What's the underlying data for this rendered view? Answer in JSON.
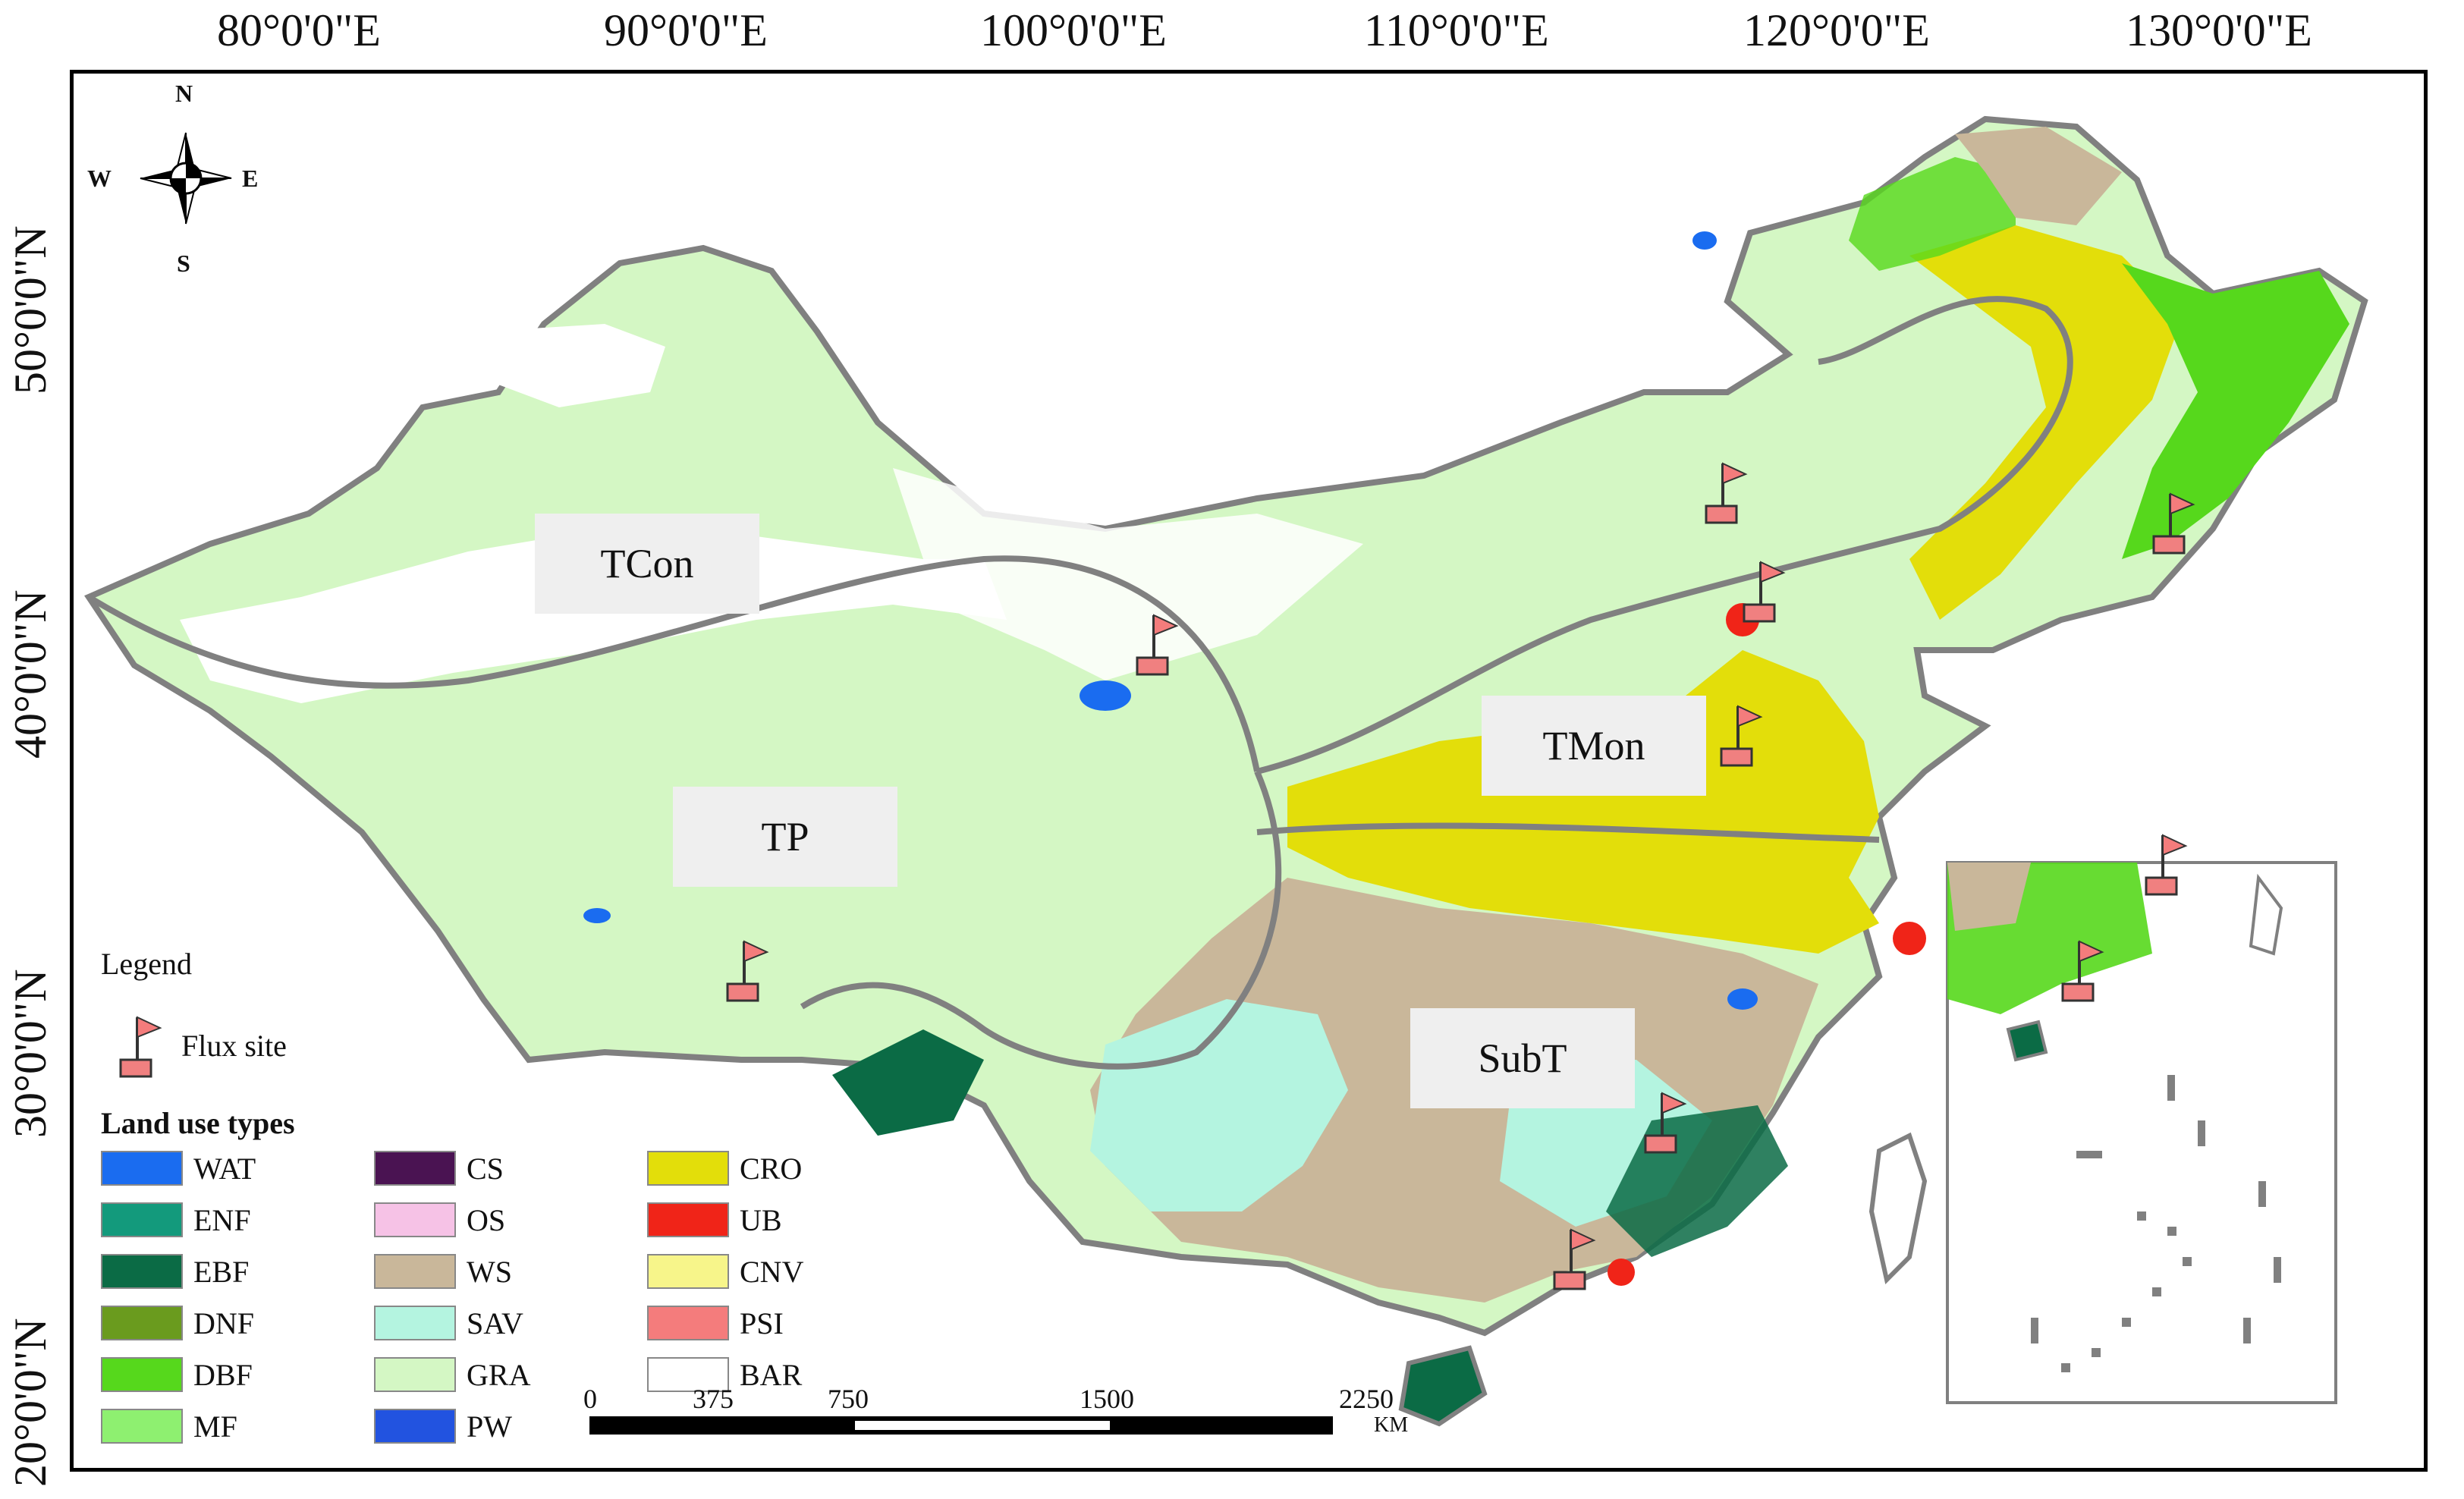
{
  "axes": {
    "longitude_labels": [
      "80°0'0\"E",
      "90°0'0\"E",
      "100°0'0\"E",
      "110°0'0\"E",
      "120°0'0\"E",
      "130°0'0\"E"
    ],
    "latitude_labels": [
      "50°0'0\"N",
      "40°0'0\"N",
      "30°0'0\"N",
      "20°0'0\"N"
    ]
  },
  "compass": {
    "north": "N",
    "south": "S",
    "east": "E",
    "west": "W"
  },
  "regions": [
    {
      "name": "TCon"
    },
    {
      "name": "TP"
    },
    {
      "name": "TMon"
    },
    {
      "name": "SubT"
    }
  ],
  "legend": {
    "title": "Legend",
    "flux_site_label": "Flux site",
    "land_use_title": "Land use types",
    "land_use_types": [
      {
        "code": "WAT",
        "color": "#1a6cf0"
      },
      {
        "code": "ENF",
        "color": "#139a7c"
      },
      {
        "code": "EBF",
        "color": "#0b6b45"
      },
      {
        "code": "DNF",
        "color": "#6a9b1e"
      },
      {
        "code": "DBF",
        "color": "#56d81c"
      },
      {
        "code": "MF",
        "color": "#8ef070"
      },
      {
        "code": "CS",
        "color": "#4a1352"
      },
      {
        "code": "OS",
        "color": "#f6c2e6"
      },
      {
        "code": "WS",
        "color": "#c9b79a"
      },
      {
        "code": "SAV",
        "color": "#b4f4e0"
      },
      {
        "code": "GRA",
        "color": "#d4f7c4"
      },
      {
        "code": "PW",
        "color": "#2253e0"
      },
      {
        "code": "CRO",
        "color": "#e3de0a"
      },
      {
        "code": "UB",
        "color": "#f02418"
      },
      {
        "code": "CNV",
        "color": "#f7f58a"
      },
      {
        "code": "PSI",
        "color": "#f47c7c"
      },
      {
        "code": "BAR",
        "color": "#ffffff"
      }
    ]
  },
  "scale_bar": {
    "ticks": [
      "0",
      "375",
      "750",
      "1500",
      "2250"
    ],
    "unit": "KM"
  },
  "colors": {
    "boundary": "#808080",
    "flux_box": "#f08080"
  }
}
